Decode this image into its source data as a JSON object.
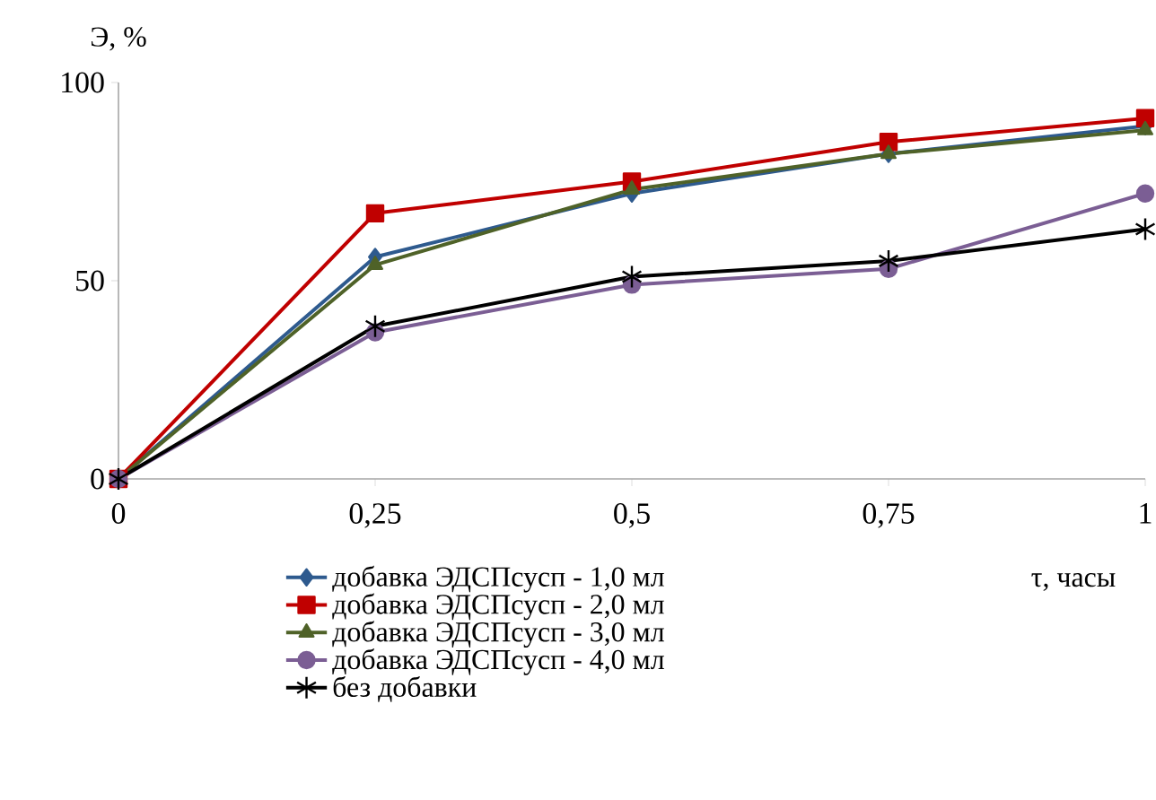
{
  "chart_data": {
    "type": "line",
    "xlabel": "τ, часы",
    "ylabel": "Э, %",
    "x": [
      0,
      0.25,
      0.5,
      0.75,
      1
    ],
    "xlim": [
      0,
      1
    ],
    "xticks": [
      0,
      {
        "value": 0.25,
        "label": "0,25"
      },
      {
        "value": 0.5,
        "label": "0,5"
      },
      {
        "value": 0.75,
        "label": "0,75"
      },
      1
    ],
    "ylim": [
      0,
      100
    ],
    "yticks": [
      0,
      50,
      100
    ],
    "legend": "bottom",
    "grid": false,
    "line_style": "solid",
    "series": [
      {
        "name": "добавка ЭДСПсусп - 1,0 мл",
        "color": "#2e5a8e",
        "marker": "diamond",
        "values": [
          0,
          56,
          72,
          82,
          89
        ]
      },
      {
        "name": "добавка ЭДСПсусп - 2,0 мл",
        "color": "#c00000",
        "marker": "square",
        "values": [
          0,
          67,
          75,
          85,
          91
        ]
      },
      {
        "name": "добавка ЭДСПсусп - 3,0 мл",
        "color": "#4f6228",
        "marker": "triangle",
        "values": [
          0,
          54,
          73,
          82,
          88
        ]
      },
      {
        "name": "добавка ЭДСПсусп - 4,0 мл",
        "color": "#7b5e94",
        "marker": "circle",
        "values": [
          0,
          37,
          49,
          53,
          72
        ]
      },
      {
        "name": "без добавки",
        "color": "#000000",
        "marker": "cross",
        "values": [
          0,
          38.5,
          51,
          55,
          63
        ]
      }
    ]
  }
}
